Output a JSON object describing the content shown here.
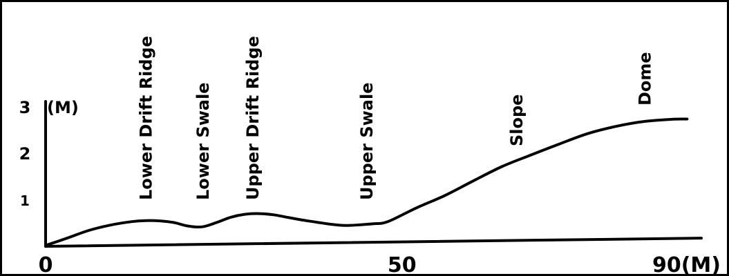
{
  "chart_data": {
    "type": "line",
    "title": "",
    "xlabel": "",
    "ylabel": "",
    "x_unit_label": "(M)",
    "y_unit_label": "(M)",
    "xlim": [
      0,
      92
    ],
    "ylim": [
      0,
      3
    ],
    "x_ticks": [
      {
        "value": 0,
        "label": "0"
      },
      {
        "value": 50,
        "label": "50"
      },
      {
        "value": 90,
        "label": "90(M)"
      }
    ],
    "y_ticks": [
      {
        "value": 1,
        "label": "1"
      },
      {
        "value": 2,
        "label": "2"
      },
      {
        "value": 3,
        "label": "3"
      }
    ],
    "series": [
      {
        "x": [
          0,
          3,
          6,
          9,
          12,
          14,
          16,
          18,
          20,
          22,
          24,
          26,
          28,
          30,
          32,
          34,
          36,
          38,
          40,
          42,
          44,
          46,
          48,
          52,
          56,
          60,
          64,
          68,
          72,
          76,
          80,
          84,
          88,
          90
        ],
        "y": [
          0.02,
          0.17,
          0.33,
          0.44,
          0.51,
          0.53,
          0.52,
          0.48,
          0.4,
          0.38,
          0.47,
          0.58,
          0.64,
          0.65,
          0.62,
          0.56,
          0.5,
          0.45,
          0.4,
          0.37,
          0.38,
          0.4,
          0.44,
          0.73,
          0.99,
          1.3,
          1.6,
          1.84,
          2.07,
          2.29,
          2.44,
          2.54,
          2.58,
          2.58
        ]
      }
    ],
    "annotations": [
      {
        "text": "Lower Drift Ridge",
        "x": 14
      },
      {
        "text": "Lower Swale",
        "x": 22
      },
      {
        "text": "Upper Drift Ridge",
        "x": 29
      },
      {
        "text": "Upper Swale",
        "x": 45
      },
      {
        "text": "Slope",
        "x": 66
      },
      {
        "text": "Dome",
        "x": 84
      }
    ],
    "grid": false,
    "legend": "none"
  }
}
